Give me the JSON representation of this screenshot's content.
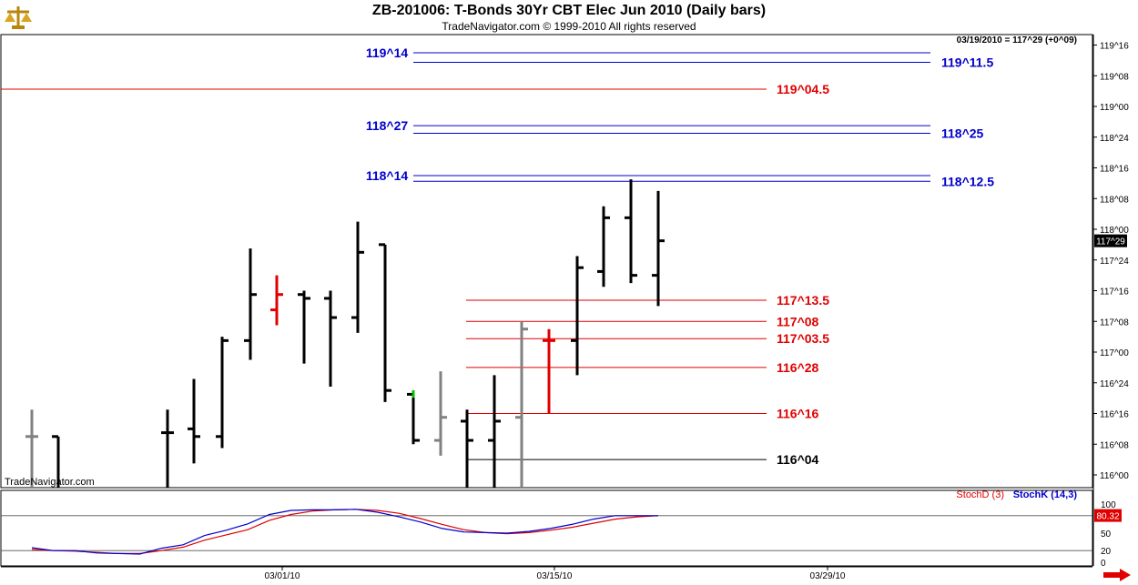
{
  "header": {
    "title": "ZB-201006:  T-Bonds 30Yr CBT Elec Jun 2010  (Daily bars)",
    "copyright": "TradeNavigator.com © 1999-2010 All rights reserved",
    "last_quote": "03/19/2010 = 117^29 (+0^09)",
    "watermark": "TradeNavigator.com"
  },
  "icons": {
    "logo": "scales-logo-icon",
    "next": "red-right-arrow-icon"
  },
  "colors": {
    "bar": "#000000",
    "bar_gray": "#808080",
    "bar_red": "#e00000",
    "bar_green": "#00c000",
    "blue_level": "#0000cc",
    "red_level": "#e00000",
    "stoch_d": "#e00000",
    "stoch_k": "#0000cc"
  },
  "chart_data": [
    {
      "type": "ohlc",
      "title": "ZB-201006:  T-Bonds 30Yr CBT Elec Jun 2010  (Daily bars)",
      "y_unit": "points, fractional part in 32nds",
      "ylim": [
        "115^28",
        "119^20"
      ],
      "y_ticks": [
        "119^16",
        "119^08",
        "119^00",
        "118^24",
        "118^16",
        "118^08",
        "118^00",
        "117^24",
        "117^16",
        "117^08",
        "117^00",
        "116^24",
        "116^16",
        "116^08",
        "116^00"
      ],
      "x_ticks": [
        "03/01/10",
        "03/15/10",
        "03/29/10"
      ],
      "current_price": "117^29",
      "bars": [
        {
          "o": "116^10",
          "h": "116^17",
          "l": "115^28",
          "c": "116^10",
          "color": "gray"
        },
        {
          "o": "116^10",
          "h": "116^10",
          "l": "115^28",
          "c": "115^28",
          "color": "black"
        },
        {
          "o": "116^11",
          "h": "116^17",
          "l": "115^28",
          "c": "116^11",
          "color": "black"
        },
        {
          "o": "116^12",
          "h": "116^25",
          "l": "116^03",
          "c": "116^10",
          "color": "black"
        },
        {
          "o": "116^10",
          "h": "117^04",
          "l": "116^07",
          "c": "117^03",
          "color": "black"
        },
        {
          "o": "117^03",
          "h": "117^27",
          "l": "116^30",
          "c": "117^15",
          "color": "black"
        },
        {
          "o": "117^11",
          "h": "117^20",
          "l": "117^07",
          "c": "117^15",
          "color": "red"
        },
        {
          "o": "117^15",
          "h": "117^16",
          "l": "116^29",
          "c": "117^14",
          "color": "black"
        },
        {
          "o": "117^14",
          "h": "117^16",
          "l": "116^23",
          "c": "117^09",
          "color": "black"
        },
        {
          "o": "117^09",
          "h": "118^02",
          "l": "117^05",
          "c": "117^26",
          "color": "black"
        },
        {
          "o": "117^28",
          "h": "117^28",
          "l": "116^19",
          "c": "116^22",
          "color": "black"
        },
        {
          "o": "116^21",
          "h": "116^22",
          "l": "116^08",
          "c": "116^09",
          "color": "black",
          "up_tick_color": "green"
        },
        {
          "o": "116^09",
          "h": "116^27",
          "l": "116^05",
          "c": "116^15",
          "color": "gray"
        },
        {
          "o": "116^14",
          "h": "116^17",
          "l": "115^28",
          "c": "116^09",
          "color": "black"
        },
        {
          "o": "116^09",
          "h": "116^26",
          "l": "115^28",
          "c": "116^14",
          "color": "black"
        },
        {
          "o": "116^15",
          "h": "117^08",
          "l": "115^28",
          "c": "117^06",
          "color": "gray"
        },
        {
          "o": "117^03",
          "h": "117^06",
          "l": "116^16",
          "c": "117^03",
          "color": "red"
        },
        {
          "o": "117^03",
          "h": "117^25",
          "l": "116^26",
          "c": "117^22",
          "color": "black"
        },
        {
          "o": "117^21",
          "h": "118^06",
          "l": "117^17",
          "c": "118^03",
          "color": "black"
        },
        {
          "o": "118^03",
          "h": "118^13",
          "l": "117^18",
          "c": "117^20",
          "color": "black"
        },
        {
          "o": "117^20",
          "h": "118^10",
          "l": "117^12",
          "c": "117^29",
          "color": "black"
        }
      ],
      "levels": [
        {
          "label": "119^14",
          "value": "119^14",
          "color": "blue",
          "label_side": "left"
        },
        {
          "label": "119^11.5",
          "value": "119^11.5",
          "color": "blue",
          "label_side": "right"
        },
        {
          "label": "119^04.5",
          "value": "119^04.5",
          "color": "red",
          "label_side": "right"
        },
        {
          "label": "118^27",
          "value": "118^27",
          "color": "blue",
          "label_side": "left"
        },
        {
          "label": "118^25",
          "value": "118^25",
          "color": "blue",
          "label_side": "right"
        },
        {
          "label": "118^14",
          "value": "118^14",
          "color": "blue",
          "label_side": "left"
        },
        {
          "label": "118^12.5",
          "value": "118^12.5",
          "color": "blue",
          "label_side": "right"
        },
        {
          "label": "117^13.5",
          "value": "117^13.5",
          "color": "red",
          "label_side": "right"
        },
        {
          "label": "117^08",
          "value": "117^08",
          "color": "red",
          "label_side": "right"
        },
        {
          "label": "117^03.5",
          "value": "117^03.5",
          "color": "red",
          "label_side": "right"
        },
        {
          "label": "116^28",
          "value": "116^28",
          "color": "red",
          "label_side": "right"
        },
        {
          "label": "116^16",
          "value": "116^16",
          "color": "red",
          "label_side": "right"
        },
        {
          "label": "116^04",
          "value": "116^04",
          "color": "black",
          "label_side": "right"
        }
      ]
    },
    {
      "type": "line",
      "legend": [
        "StochD (3)",
        "StochK (14,3)"
      ],
      "ylim": [
        0,
        100
      ],
      "y_ticks": [
        "100",
        "80",
        "50",
        "20",
        "0"
      ],
      "current_value": "80.32",
      "series": [
        {
          "name": "StochD (3)",
          "color": "red",
          "values": [
            22,
            20,
            19,
            17,
            15,
            15,
            20,
            26,
            38,
            47,
            56,
            72,
            82,
            88,
            90,
            91,
            89,
            84,
            75,
            65,
            56,
            51,
            49,
            51,
            55,
            60,
            67,
            74,
            78,
            80
          ]
        },
        {
          "name": "StochK (14,3)",
          "color": "blue",
          "values": [
            25,
            20,
            20,
            16,
            15,
            14,
            24,
            30,
            46,
            55,
            66,
            82,
            89,
            90,
            90,
            91,
            86,
            78,
            69,
            58,
            52,
            51,
            50,
            53,
            58,
            65,
            74,
            80,
            80,
            80
          ]
        }
      ]
    }
  ]
}
